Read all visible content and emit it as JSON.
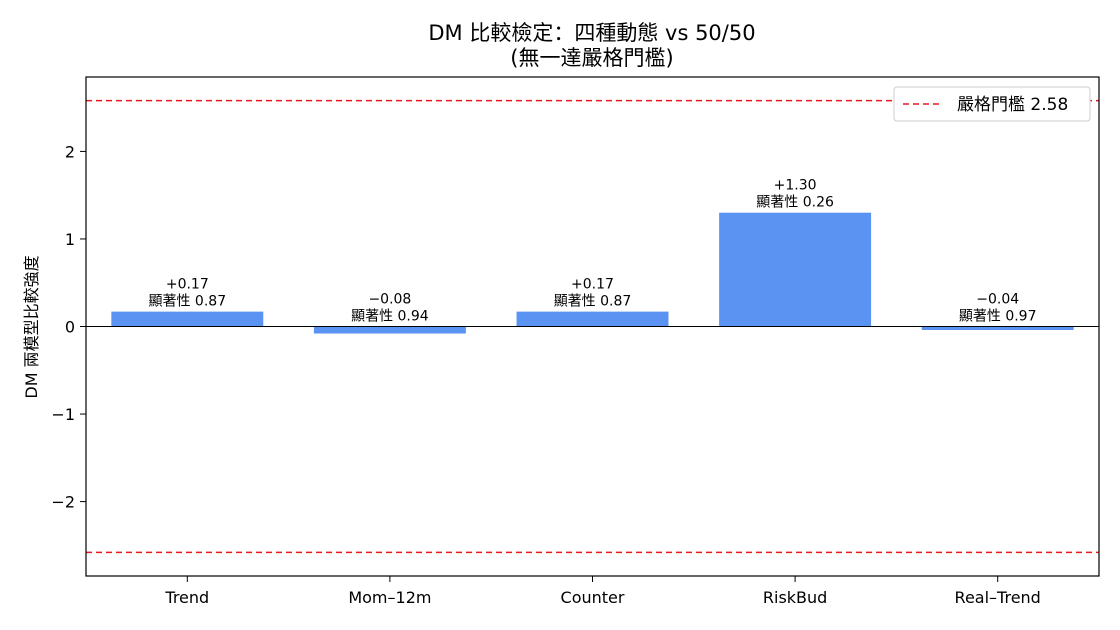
{
  "chart_data": {
    "type": "bar",
    "title": "DM 比較檢定：四種動態 vs 50/50",
    "subtitle": "(無一達嚴格門檻)",
    "xlabel": "",
    "ylabel": "DM 兩模型比較強度",
    "categories": [
      "Trend",
      "Mom–12m",
      "Counter",
      "RiskBud",
      "Real–Trend"
    ],
    "values": [
      0.17,
      -0.08,
      0.17,
      1.3,
      -0.04
    ],
    "value_labels": [
      "+0.17",
      "−0.08",
      "+0.17",
      "+1.30",
      "−0.04"
    ],
    "significance_labels": [
      "顯著性 0.87",
      "顯著性 0.94",
      "顯著性 0.87",
      "顯著性 0.26",
      "顯著性 0.97"
    ],
    "ylim": [
      -2.85,
      2.85
    ],
    "yticks": [
      -2,
      -1,
      0,
      1,
      2
    ],
    "ytick_labels": [
      "−2",
      "−1",
      "0",
      "1",
      "2"
    ],
    "threshold": {
      "value": 2.58,
      "label": "嚴格門檻 2.58",
      "color": "#e8191c"
    },
    "bar_color": "#5b93f2",
    "zero_line_color": "#000000",
    "grid": false,
    "legend_position": "top-right"
  }
}
